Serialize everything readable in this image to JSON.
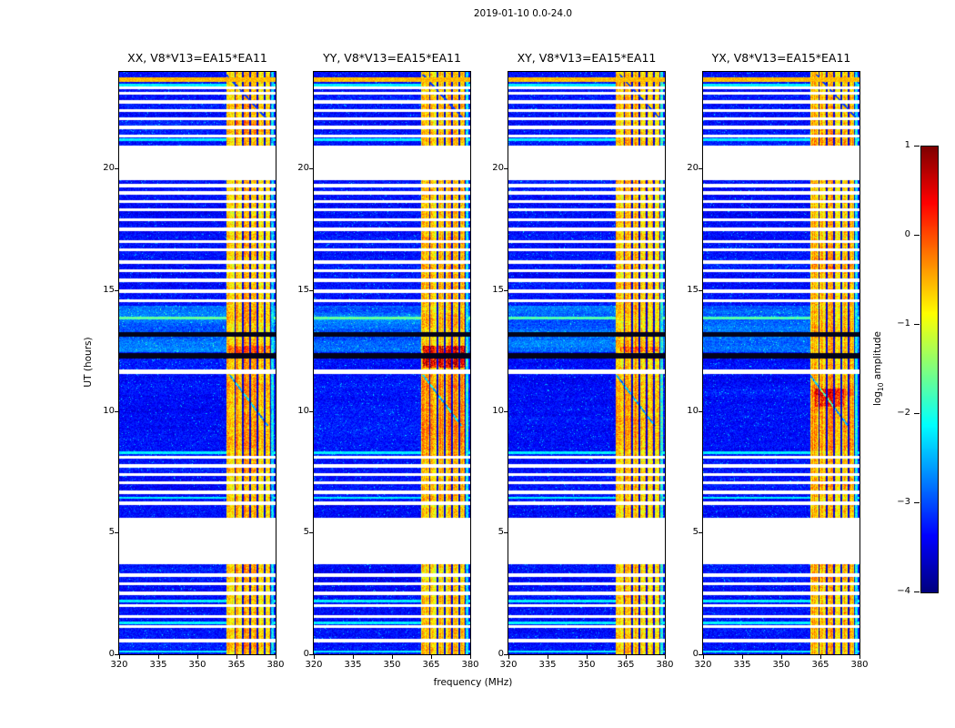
{
  "figure": {
    "title": "2019-01-10 0.0-24.0",
    "xlabel": "frequency (MHz)",
    "ylabel": "UT (hours)",
    "colorbar_label_prefix": "log",
    "colorbar_label_sub": "10",
    "colorbar_label_suffix": " amplitude"
  },
  "chart_data": {
    "type": "heatmap",
    "title": "2019-01-10 0.0-24.0",
    "xlabel": "frequency (MHz)",
    "ylabel": "UT (hours)",
    "colormap": "jet",
    "panels": [
      {
        "label": "XX, V8*V13=EA15*EA11",
        "hot_spot": {
          "t": [
            12.35,
            12.7
          ],
          "f": [
            362,
            378.5
          ],
          "boost": 0.45
        }
      },
      {
        "label": "YY, V8*V13=EA15*EA11",
        "hot_spot": {
          "t": [
            11.8,
            12.7
          ],
          "f": [
            362,
            378.5
          ],
          "boost": 1.15
        }
      },
      {
        "label": "XY, V8*V13=EA15*EA11",
        "hot_spot": {
          "t": [
            12.45,
            12.68
          ],
          "f": [
            363,
            377.5
          ],
          "boost": 0.55
        }
      },
      {
        "label": "YX, V8*V13=EA15*EA11",
        "hot_spot": {
          "t": [
            10.2,
            10.95
          ],
          "f": [
            363,
            374.0
          ],
          "boost": 0.75
        }
      }
    ],
    "x_axis": {
      "label": "frequency (MHz)",
      "range": [
        320,
        380
      ],
      "ticks": [
        320,
        335,
        350,
        365,
        380
      ]
    },
    "y_axis": {
      "label": "UT (hours)",
      "range": [
        0,
        24
      ],
      "ticks": [
        0,
        5,
        10,
        15,
        20
      ]
    },
    "colorbar": {
      "label": "log10 amplitude",
      "range": [
        -4,
        1
      ],
      "ticks": [
        1,
        0,
        -1,
        -2,
        -3,
        -4
      ],
      "tick_labels": [
        "1",
        "0",
        "−1",
        "−2",
        "−3",
        "−4"
      ]
    },
    "features": {
      "background_log_amp": [
        -3.6,
        -3.1
      ],
      "rfi_band_mhz": [
        361.2,
        379.2
      ],
      "band_log_amp": [
        -1.5,
        -0.4
      ],
      "band_dark_lines_mhz": [
        364.6,
        367.4,
        370.2,
        373.0,
        375.8,
        378.2
      ],
      "data_gap_hours": [
        [
          0.5,
          0.64
        ],
        [
          1.08,
          1.2
        ],
        [
          1.5,
          1.62
        ],
        [
          1.95,
          2.07
        ],
        [
          2.45,
          2.57
        ],
        [
          2.85,
          2.97
        ],
        [
          3.2,
          3.32
        ],
        [
          3.7,
          5.62
        ],
        [
          6.15,
          6.29
        ],
        [
          6.6,
          6.74
        ],
        [
          7.0,
          7.12
        ],
        [
          7.35,
          7.47
        ],
        [
          7.7,
          7.82
        ],
        [
          8.05,
          8.17
        ],
        [
          11.55,
          11.72
        ],
        [
          14.5,
          14.62
        ],
        [
          14.9,
          15.02
        ],
        [
          15.35,
          15.47
        ],
        [
          15.75,
          15.87
        ],
        [
          16.1,
          16.22
        ],
        [
          16.6,
          16.72
        ],
        [
          16.95,
          17.07
        ],
        [
          17.45,
          17.57
        ],
        [
          17.85,
          17.97
        ],
        [
          18.25,
          18.37
        ],
        [
          18.6,
          18.72
        ],
        [
          18.95,
          19.07
        ],
        [
          19.25,
          19.37
        ],
        [
          19.55,
          20.95
        ],
        [
          21.3,
          21.42
        ],
        [
          21.65,
          21.77
        ],
        [
          22.0,
          22.12
        ],
        [
          22.35,
          22.47
        ],
        [
          22.7,
          22.82
        ],
        [
          23.05,
          23.17
        ],
        [
          23.3,
          23.4
        ]
      ],
      "black_row_hours": [
        [
          12.18,
          12.42
        ],
        [
          13.08,
          13.28
        ]
      ],
      "cyan_row_hours": [
        0.12,
        1.3,
        2.2,
        6.45,
        8.3,
        13.85,
        21.2,
        23.45
      ],
      "yellow_row_hours": [
        [
          23.6,
          23.78
        ]
      ],
      "bright_region_hours": [
        12.45,
        14.35
      ]
    }
  }
}
